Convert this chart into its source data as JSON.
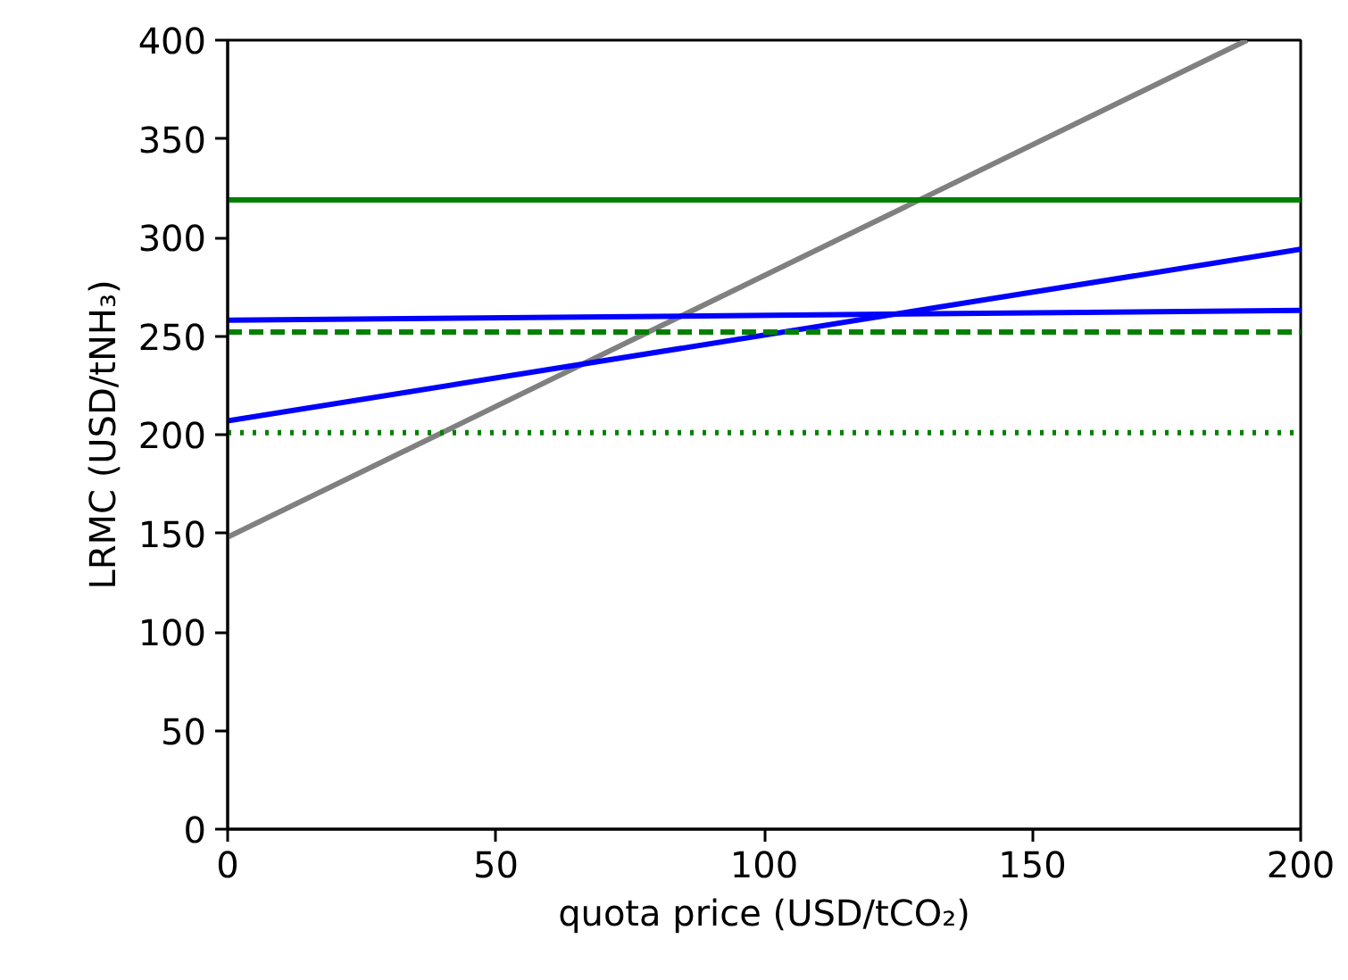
{
  "chart_data": {
    "type": "line",
    "xlabel": "quota price (USD/tCO₂)",
    "ylabel": "LRMC (USD/tNH₃)",
    "xlim": [
      0,
      200
    ],
    "ylim": [
      0,
      400
    ],
    "xticks": [
      0,
      50,
      100,
      150,
      200
    ],
    "yticks": [
      0,
      50,
      100,
      150,
      200,
      250,
      300,
      350,
      400
    ],
    "series": [
      {
        "color": "#808080",
        "x": [
          0,
          190
        ],
        "values": [
          148,
          400
        ],
        "line_style": "solid"
      },
      {
        "color": "#008000",
        "x": [
          0,
          200
        ],
        "values": [
          319,
          319
        ],
        "line_style": "solid"
      },
      {
        "color": "#0000ff",
        "x": [
          0,
          200
        ],
        "values": [
          258,
          263
        ],
        "line_style": "solid"
      },
      {
        "color": "#0000ff",
        "x": [
          0,
          200
        ],
        "values": [
          207,
          294
        ],
        "line_style": "solid"
      },
      {
        "color": "#008000",
        "x": [
          0,
          200
        ],
        "values": [
          252,
          252
        ],
        "line_style": "dashed"
      },
      {
        "color": "#008000",
        "x": [
          0,
          200
        ],
        "values": [
          201,
          201
        ],
        "line_style": "dotted"
      }
    ]
  }
}
